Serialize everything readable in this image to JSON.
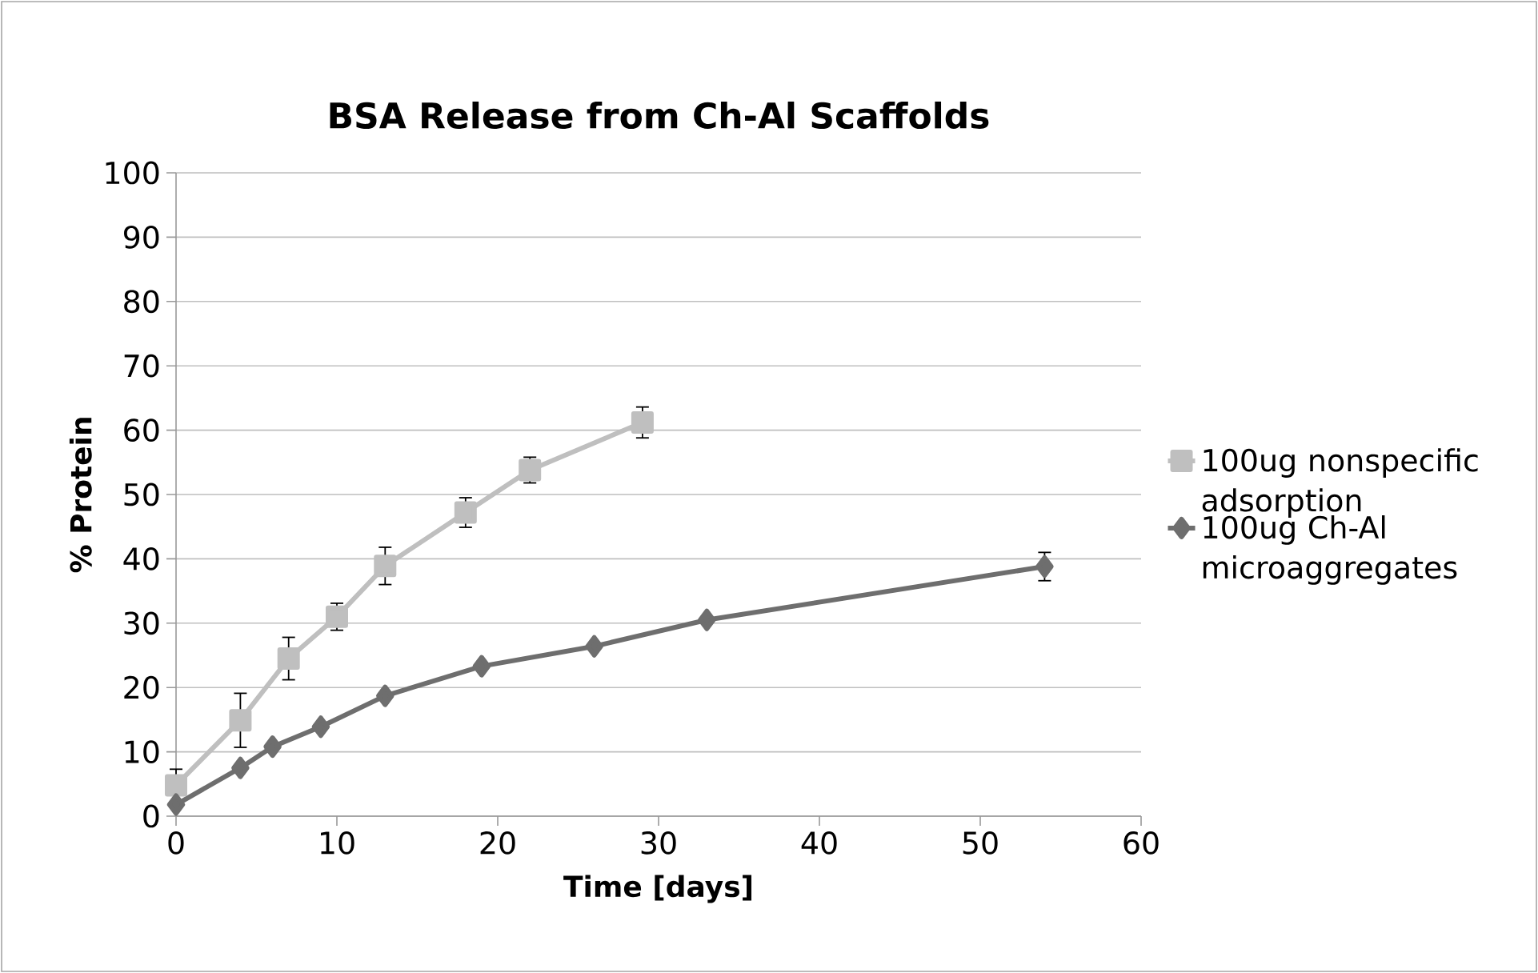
{
  "chart_data": {
    "type": "line",
    "title": "BSA Release from Ch-Al Scaffolds",
    "xlabel": "Time [days]",
    "ylabel": "% Protein",
    "xlim": [
      0,
      60
    ],
    "xticks": [
      0,
      10,
      20,
      30,
      40,
      50,
      60
    ],
    "ylim": [
      0,
      100
    ],
    "yticks": [
      0,
      10,
      20,
      30,
      40,
      50,
      60,
      70,
      80,
      90,
      100
    ],
    "grid": "y",
    "legend": "right",
    "line_style": "solid",
    "series": [
      {
        "name": "100ug nonspecific adsorption",
        "color": "#bfbfbf",
        "marker": "square",
        "x": [
          0,
          4,
          7,
          10,
          13,
          18,
          22,
          29
        ],
        "values": [
          4.8,
          14.9,
          24.5,
          31,
          38.9,
          47.2,
          53.8,
          61.2
        ],
        "errors": [
          2.5,
          4.2,
          3.3,
          2.1,
          2.9,
          2.3,
          2,
          2.4
        ]
      },
      {
        "name": "100ug Ch-Al microaggregates",
        "color": "#6e6e6e",
        "marker": "diamond",
        "x": [
          0,
          4,
          6,
          9,
          13,
          19,
          26,
          33,
          54
        ],
        "values": [
          1.8,
          7.5,
          10.8,
          13.9,
          18.7,
          23.3,
          26.4,
          30.5,
          38.8
        ],
        "errors": [
          null,
          null,
          null,
          null,
          null,
          null,
          null,
          null,
          2.2
        ]
      }
    ]
  }
}
